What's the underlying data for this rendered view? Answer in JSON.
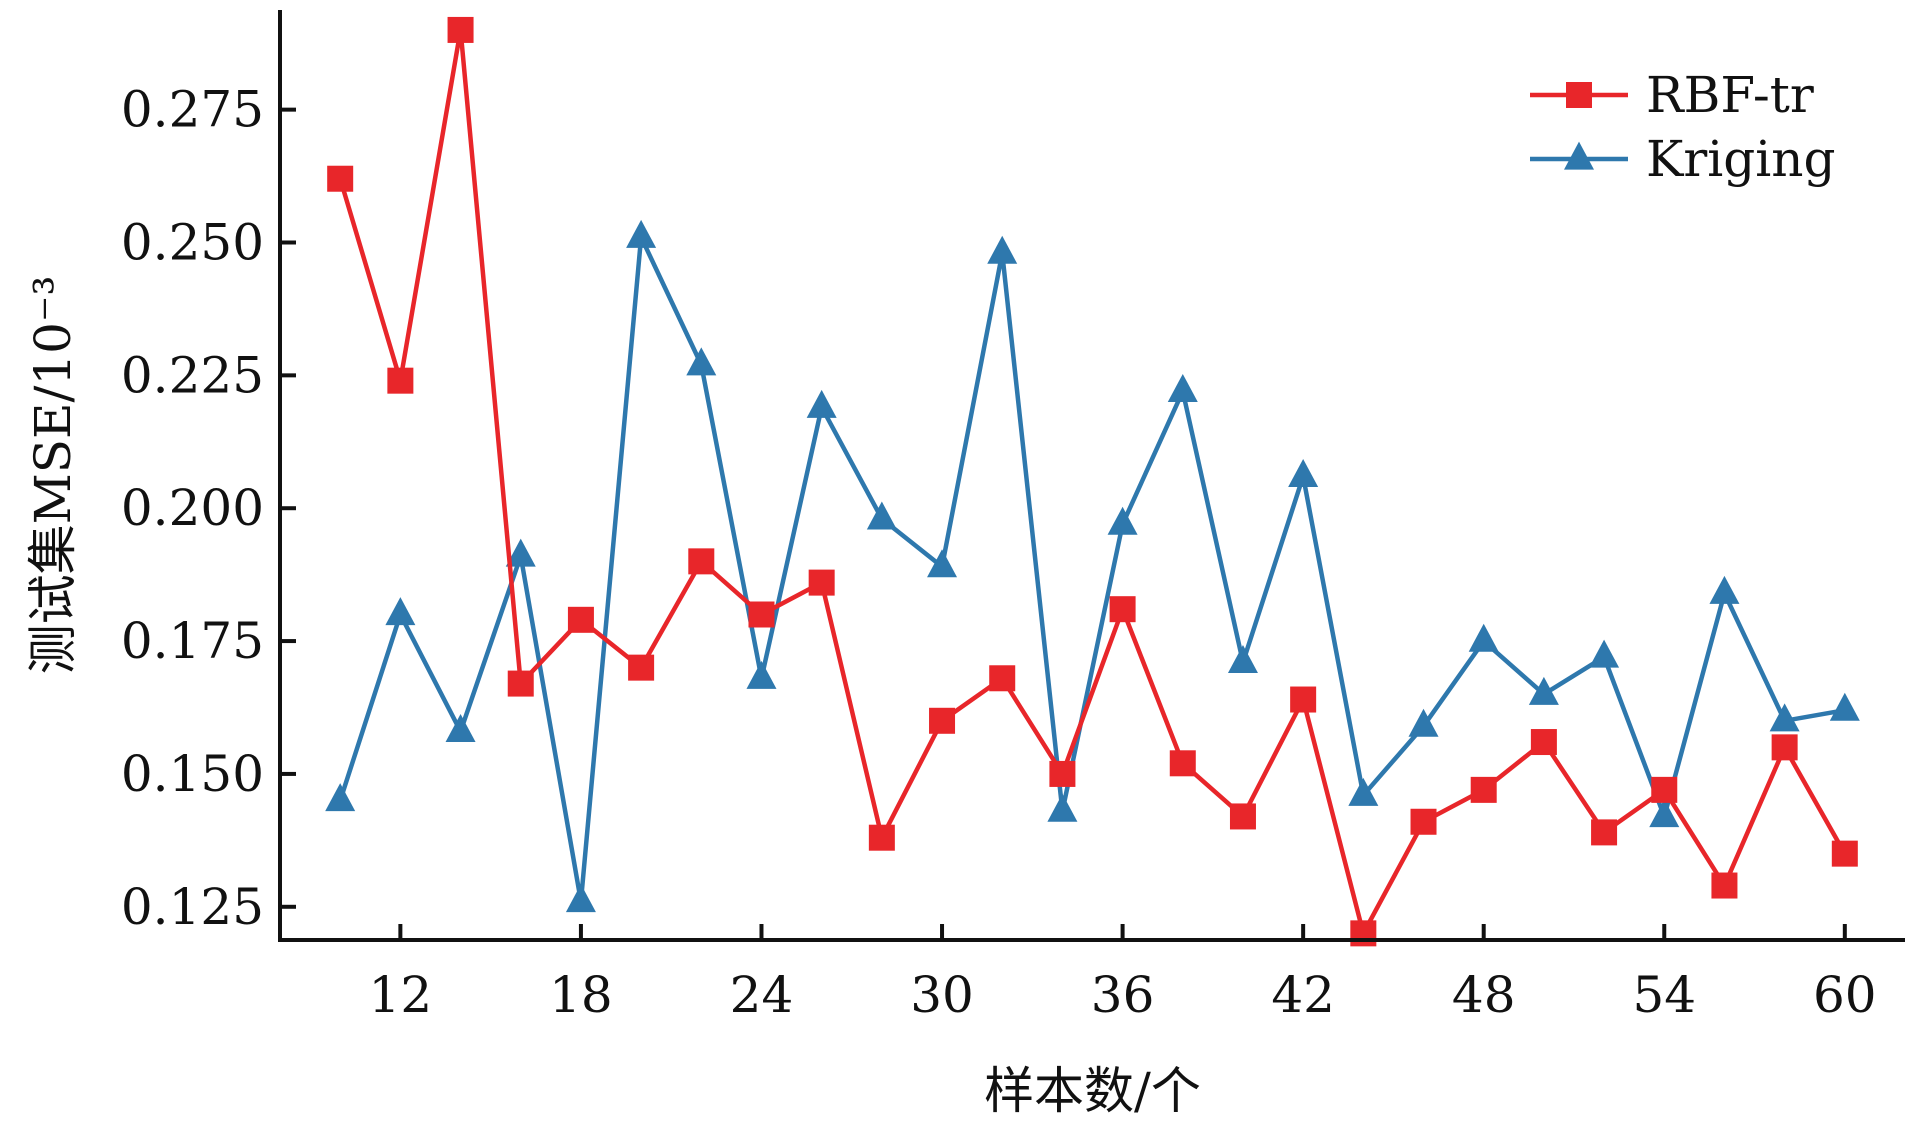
{
  "chart_data": {
    "type": "line",
    "xlabel": "样本数/个",
    "ylabel": "测试集MSE/10⁻³",
    "xlim": [
      8,
      62
    ],
    "ylim": [
      0.11875,
      0.29375
    ],
    "x_ticks": [
      12,
      18,
      24,
      30,
      36,
      42,
      48,
      54,
      60
    ],
    "x_tick_labels": [
      "12",
      "18",
      "24",
      "30",
      "36",
      "42",
      "48",
      "54",
      "60"
    ],
    "y_ticks": [
      0.125,
      0.15,
      0.175,
      0.2,
      0.225,
      0.25,
      0.275
    ],
    "y_tick_labels": [
      "0.125",
      "0.150",
      "0.175",
      "0.200",
      "0.225",
      "0.250",
      "0.275"
    ],
    "grid": false,
    "legend": {
      "position": "top-right"
    },
    "x": [
      10,
      12,
      14,
      16,
      18,
      20,
      22,
      24,
      26,
      28,
      30,
      32,
      34,
      36,
      38,
      40,
      42,
      44,
      46,
      48,
      50,
      52,
      54,
      56,
      58,
      60
    ],
    "series": [
      {
        "name": "RBF-tr",
        "color": "#e8262a",
        "marker": "square",
        "values": [
          0.262,
          0.224,
          0.29,
          0.167,
          0.179,
          0.17,
          0.19,
          0.18,
          0.186,
          0.138,
          0.16,
          0.168,
          0.15,
          0.181,
          0.152,
          0.142,
          0.164,
          0.12,
          0.141,
          0.147,
          0.156,
          0.139,
          0.147,
          0.129,
          0.155,
          0.135
        ]
      },
      {
        "name": "Kriging",
        "color": "#2e78ad",
        "marker": "triangle",
        "values": [
          0.145,
          0.18,
          0.158,
          0.191,
          0.126,
          0.251,
          0.227,
          0.168,
          0.219,
          0.198,
          0.189,
          0.248,
          0.143,
          0.197,
          0.222,
          0.171,
          0.206,
          0.146,
          0.159,
          0.175,
          0.165,
          0.172,
          0.142,
          0.184,
          0.16,
          0.162
        ]
      }
    ]
  }
}
